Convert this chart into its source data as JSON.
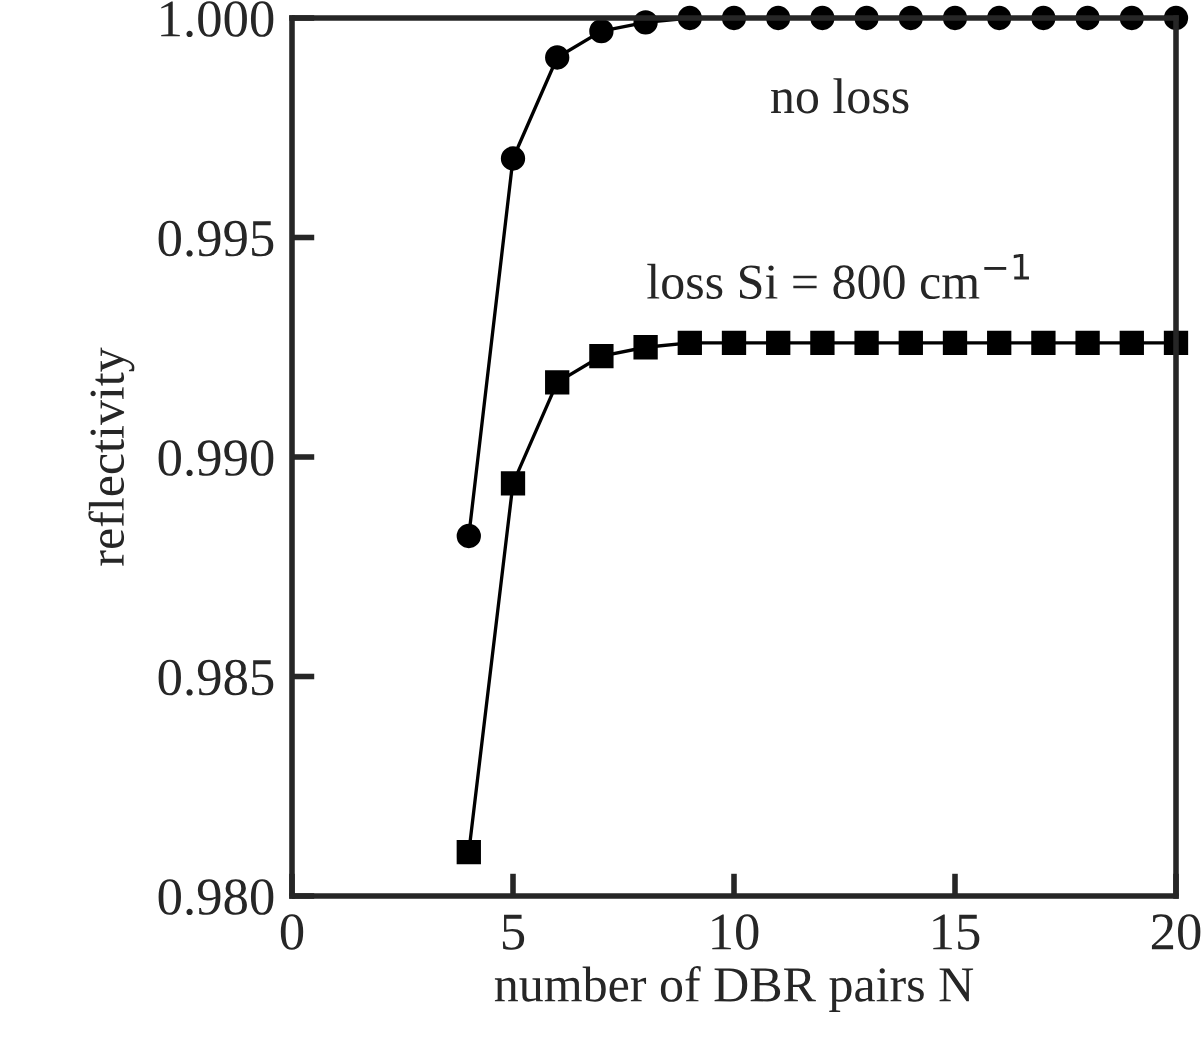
{
  "chart_data": {
    "type": "line",
    "xlabel": "number of DBR pairs N",
    "ylabel": "reflectivity",
    "x": [
      4,
      5,
      6,
      7,
      8,
      9,
      10,
      11,
      12,
      13,
      14,
      15,
      16,
      17,
      18,
      19,
      20
    ],
    "series": [
      {
        "color": "#000000",
        "marker": "circle",
        "values": [
          0.9882,
          0.9968,
          0.9991,
          0.9997,
          0.9999,
          1.0,
          1.0,
          1.0,
          1.0,
          1.0,
          1.0,
          1.0,
          1.0,
          1.0,
          1.0,
          1.0,
          1.0
        ]
      },
      {
        "color": "#000000",
        "marker": "square",
        "values": [
          0.981,
          0.9894,
          0.9917,
          0.9923,
          0.9925,
          0.9926,
          0.9926,
          0.9926,
          0.9926,
          0.9926,
          0.9926,
          0.9926,
          0.9926,
          0.9926,
          0.9926,
          0.9926,
          0.9926
        ]
      }
    ],
    "annotations": [
      "no loss",
      "loss Si = 800 cm$^{−1}$"
    ],
    "xlim": [
      0,
      20
    ],
    "xticks": [
      0,
      5,
      10,
      15,
      20
    ],
    "ylim": [
      0.98,
      1.0
    ],
    "yticks": [
      {
        "value": 0.98,
        "label": "0.980"
      },
      {
        "value": 0.985,
        "label": "0.985"
      },
      {
        "value": 0.99,
        "label": "0.990"
      },
      {
        "value": 0.995,
        "label": "0.995"
      },
      {
        "value": 1.0,
        "label": "1.000"
      }
    ],
    "grid": false,
    "legend": false,
    "line_style": "solid"
  }
}
